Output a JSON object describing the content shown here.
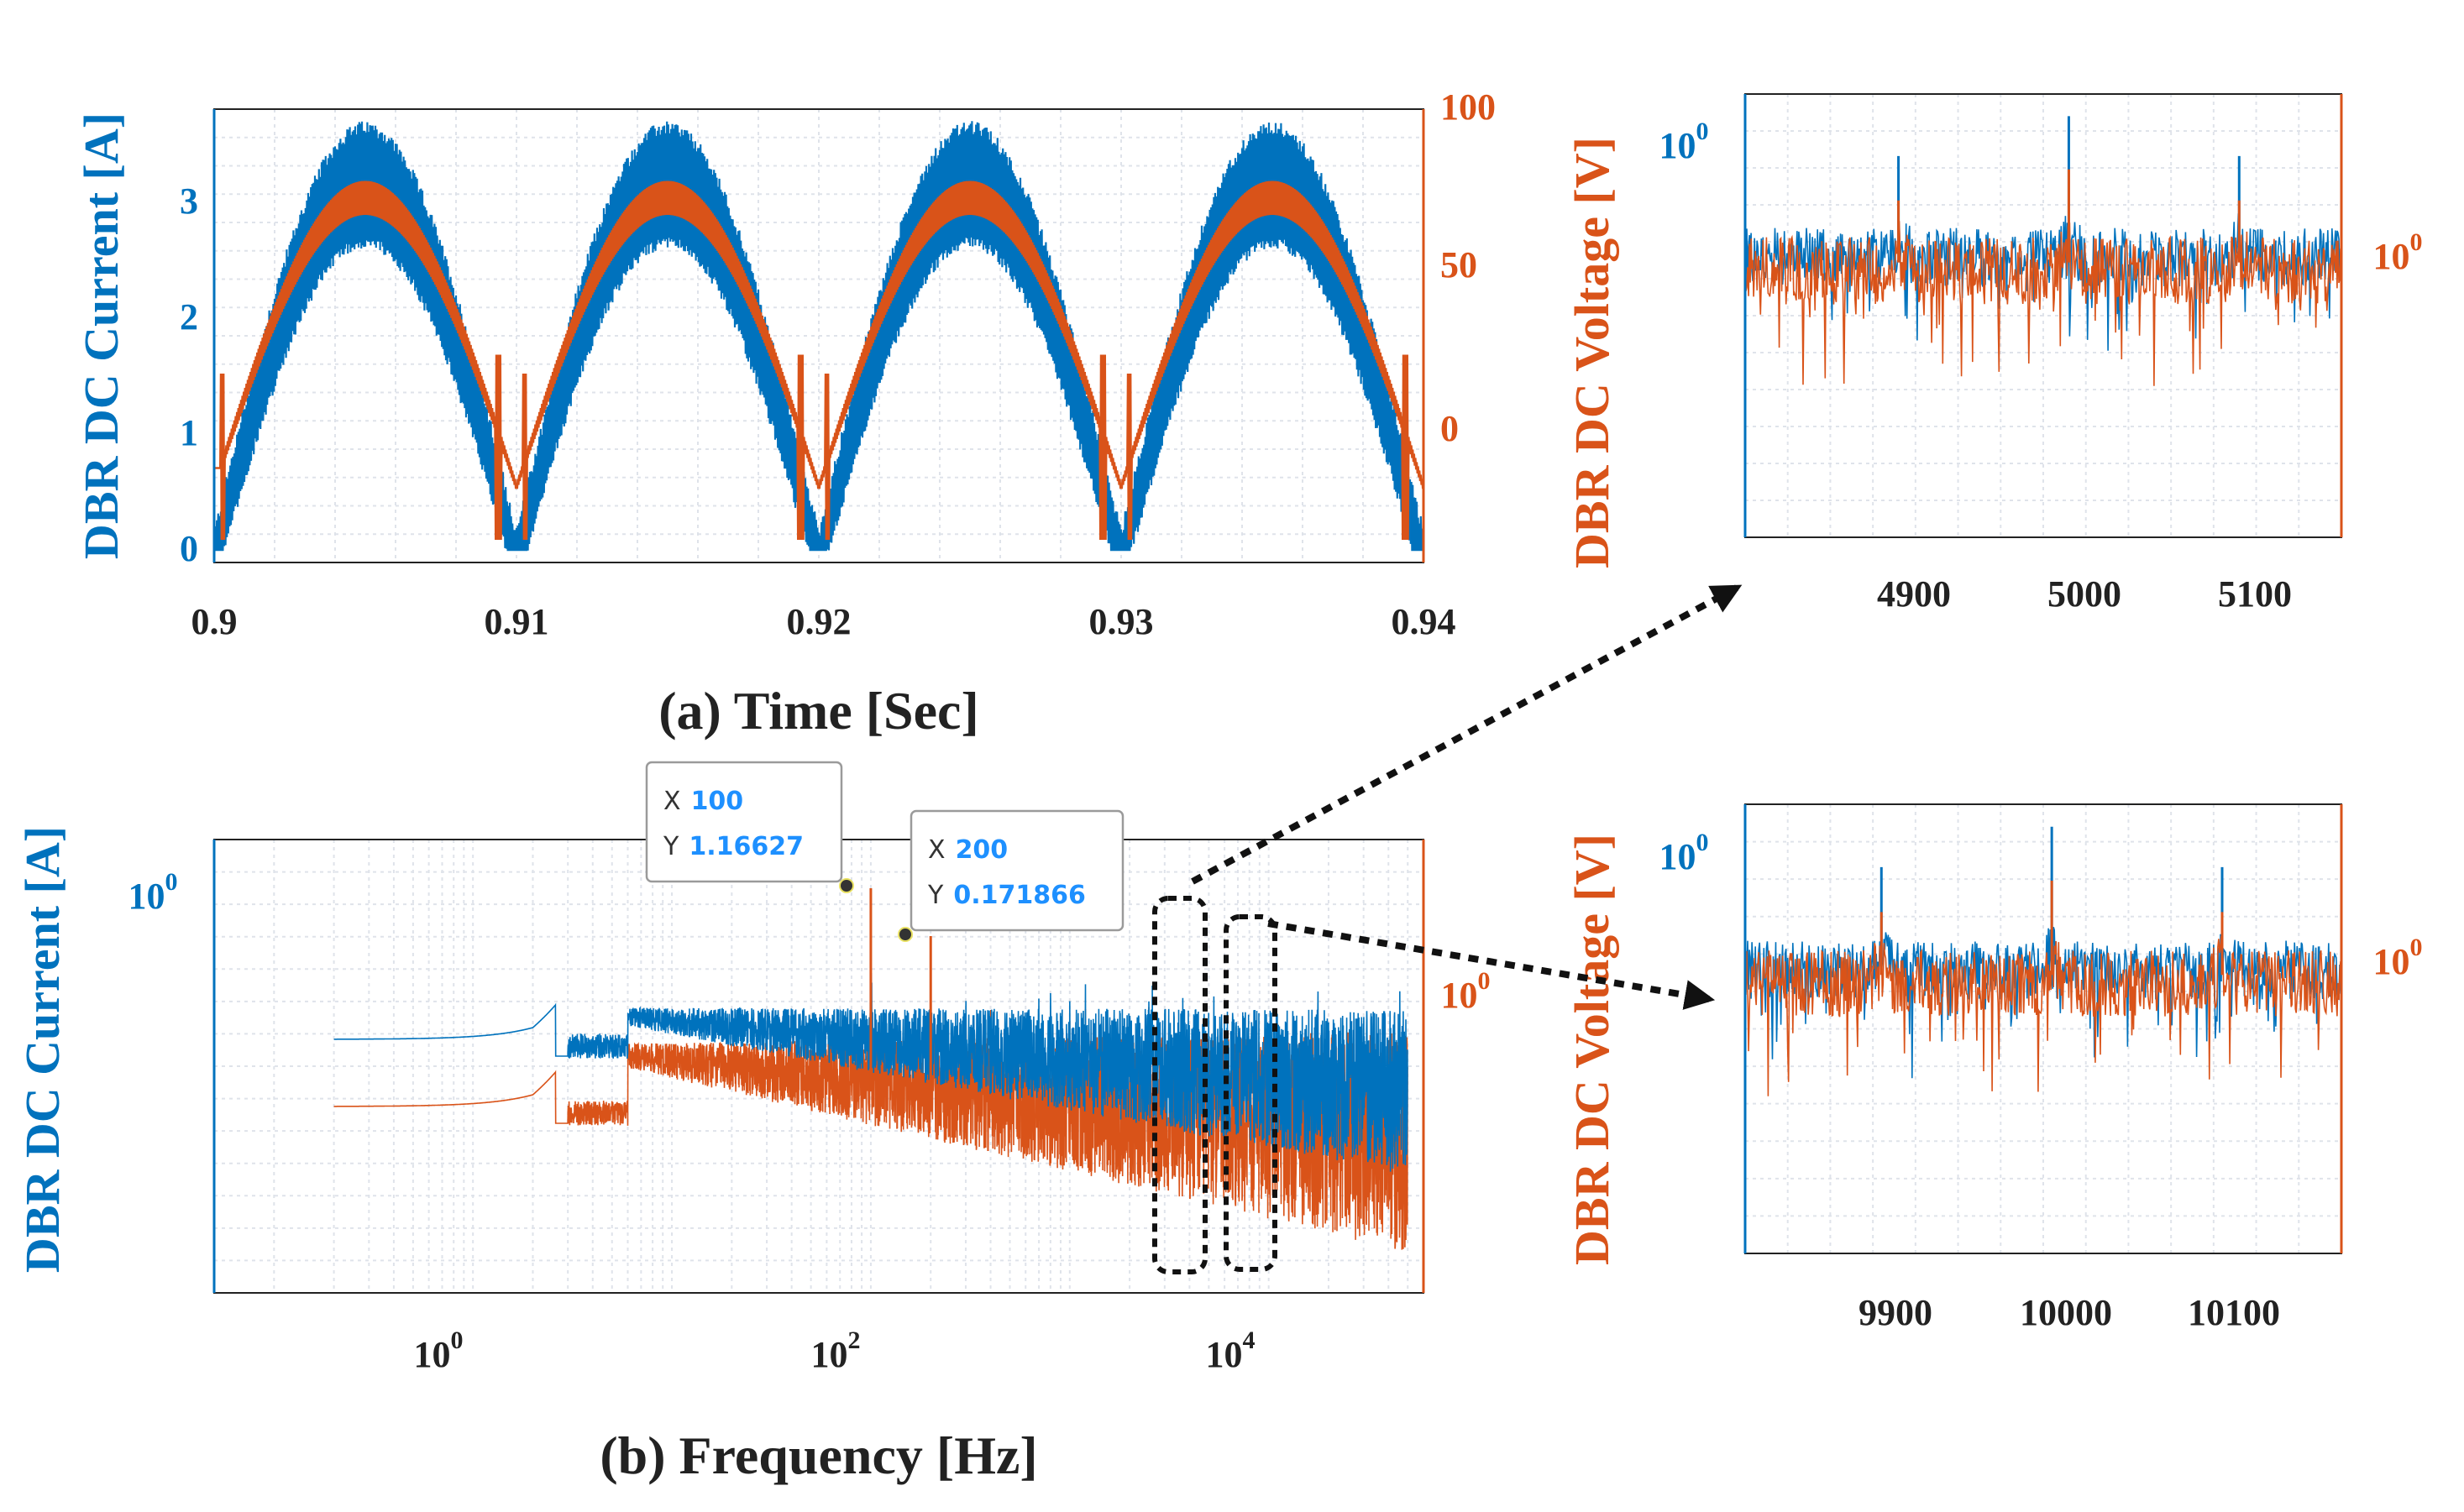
{
  "colors": {
    "current": "#0072BD",
    "voltage": "#D95319",
    "axis": "#222222"
  },
  "chart_data": [
    {
      "id": "a",
      "type": "line",
      "xlabel": "(a) Time [Sec]",
      "ylabel_left": "DBR DC Current [A]",
      "ylabel_right": "DBR DC Voltage [V]",
      "xlim": [
        0.9,
        0.94
      ],
      "ylim_left": [
        -0.1,
        3.8
      ],
      "ylim_right": [
        -20,
        100
      ],
      "xticks": [
        "0.9",
        "0.91",
        "0.92",
        "0.93",
        "0.94"
      ],
      "yticks_left": [
        "0",
        "1",
        "2",
        "3"
      ],
      "yticks_right": [
        "0",
        "50",
        "100"
      ],
      "grid": true,
      "series": [
        {
          "axis": "left",
          "color": "#0072BD",
          "envelope": "|sin(2*pi*50*t)|",
          "peak_upper": 3.5,
          "peak_lower": 2.95,
          "period_s": 0.01
        },
        {
          "axis": "right",
          "color": "#D95319",
          "envelope": "|sin(2*pi*50*t)|",
          "peak_upper": 80,
          "peak_lower": 73,
          "valley_min": 0,
          "period_s": 0.01
        }
      ]
    },
    {
      "id": "b",
      "type": "line",
      "xscale": "log",
      "yscale": "log",
      "xlabel": "(b) Frequency [Hz]",
      "ylabel_left": "DBR DC Current [A]",
      "ylabel_right": "DBR DC Voltage [V]",
      "xlim": [
        0.05,
        60000
      ],
      "xticks": [
        "10^0",
        "10^2",
        "10^4"
      ],
      "ytick_left": "10^0",
      "ytick_right": "10^0",
      "grid": true,
      "datatips": [
        {
          "x_label": "X",
          "x": "100",
          "y_label": "Y",
          "y": "1.16627"
        },
        {
          "x_label": "X",
          "x": "200",
          "y_label": "Y",
          "y": "0.171866"
        }
      ],
      "zoom_regions_hz": [
        [
          4600,
          5300
        ],
        [
          9400,
          10600
        ]
      ]
    },
    {
      "id": "zoom1",
      "type": "line",
      "xlim": [
        4810,
        5160
      ],
      "xticks": [
        "4900",
        "5000",
        "5100"
      ],
      "ytick_left": "10^0",
      "ytick_right": "10^0",
      "ylabel_right": "DBR DC Voltage [V]",
      "peaks_hz": [
        4900,
        5000,
        5100
      ],
      "grid": true
    },
    {
      "id": "zoom2",
      "type": "line",
      "xlim": [
        9820,
        10170
      ],
      "xticks": [
        "9900",
        "10000",
        "10100"
      ],
      "ytick_left": "10^0",
      "ytick_right": "10^0",
      "ylabel_right": "DBR DC Voltage [V]",
      "peaks_hz": [
        9900,
        10000,
        10100
      ],
      "grid": true
    }
  ]
}
